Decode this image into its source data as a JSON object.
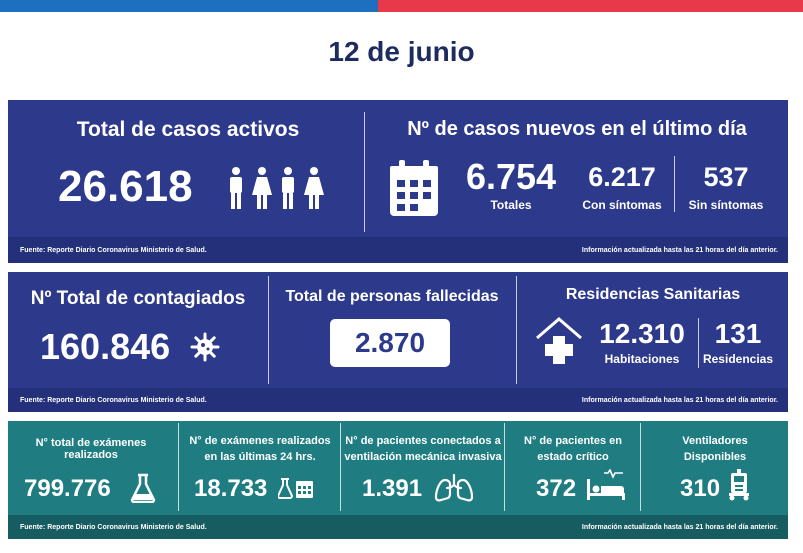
{
  "date": "12 de junio",
  "colors": {
    "blue": "#1f6fc0",
    "red": "#e8394a",
    "navy": "#2d3a8c",
    "teal": "#1f7d82"
  },
  "panel1": {
    "active": {
      "title": "Total de casos activos",
      "value": "26.618"
    },
    "new_cases": {
      "title": "Nº de casos nuevos en el último día",
      "total": "6.754",
      "total_label": "Totales",
      "with_symptoms": "6.217",
      "with_symptoms_label": "Con síntomas",
      "without_symptoms": "537",
      "without_symptoms_label": "Sin síntomas"
    },
    "footer_left": "Fuente: Reporte Diario Coronavirus Ministerio de Salud.",
    "footer_right": "Información actualizada hasta las 21 horas  del día anterior."
  },
  "panel2": {
    "contagiados": {
      "title": "Nº Total de contagiados",
      "value": "160.846"
    },
    "fallecidos": {
      "title": "Total de personas fallecidas",
      "value": "2.870"
    },
    "residencias": {
      "title": "Residencias Sanitarias",
      "habitaciones": "12.310",
      "habitaciones_label": "Habitaciones",
      "residencias": "131",
      "residencias_label": "Residencias"
    },
    "footer_left": "Fuente: Reporte Diario Coronavirus Ministerio de Salud.",
    "footer_right": "Información actualizada hasta las 21 horas  del día anterior."
  },
  "panel3": {
    "examenes": {
      "title": "N° total de exámenes realizados",
      "value": "799.776"
    },
    "examenes24": {
      "title_line1": "N° de exámenes realizados",
      "title_line2": "en las últimas 24 hrs.",
      "value": "18.733"
    },
    "ventilacion": {
      "title_line1": "N° de pacientes conectados a",
      "title_line2": "ventilación mecánica invasiva",
      "value": "1.391"
    },
    "critico": {
      "title_line1": "N° de pacientes  en",
      "title_line2": "estado crítico",
      "value": "372"
    },
    "ventiladores": {
      "title_line1": "Ventiladores",
      "title_line2": "Disponibles",
      "value": "310"
    },
    "footer_left": "Fuente: Reporte Diario Coronavirus Ministerio de Salud.",
    "footer_right": "Información actualizada hasta las 21 horas  del día anterior."
  }
}
